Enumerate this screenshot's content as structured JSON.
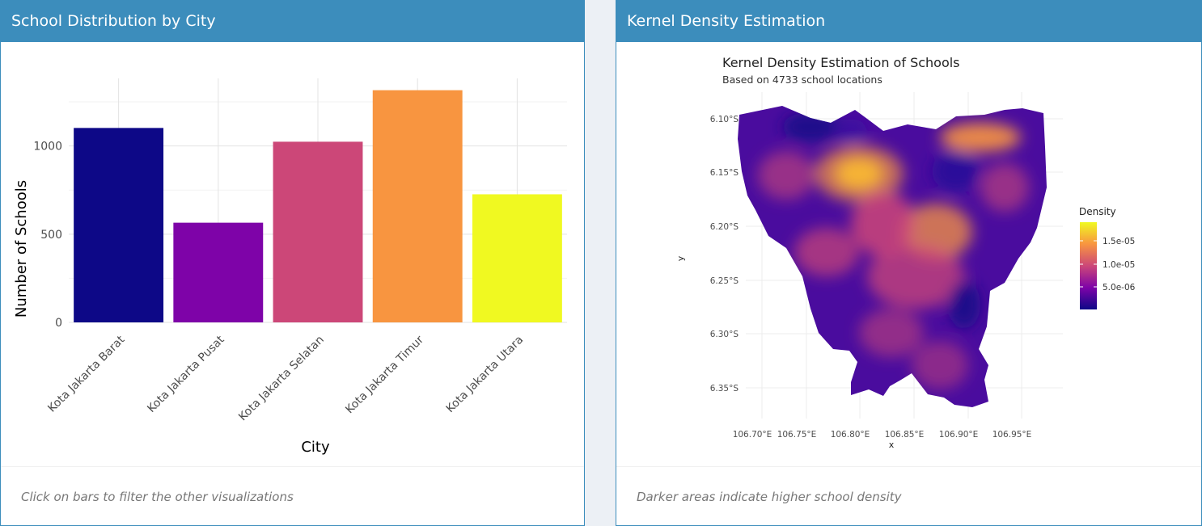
{
  "left_panel": {
    "title": "School Distribution by City",
    "footer": "Click on bars to filter the other visualizations"
  },
  "right_panel": {
    "title": "Kernel Density Estimation",
    "footer": "Darker areas indicate higher school density"
  },
  "chart_data": [
    {
      "type": "bar",
      "title": "",
      "xlabel": "City",
      "ylabel": "Number of Schools",
      "categories": [
        "Kota Jakarta Barat",
        "Kota Jakarta Pusat",
        "Kota Jakarta Selatan",
        "Kota Jakarta Timur",
        "Kota Jakarta Utara"
      ],
      "values": [
        1102,
        565,
        1024,
        1316,
        726
      ],
      "colors": [
        "#0d0887",
        "#7e03a8",
        "#cc4778",
        "#f89540",
        "#f0f921"
      ],
      "yticks": [
        0,
        500,
        1000
      ],
      "ylim": [
        0,
        1383
      ],
      "grid": true,
      "legend": "none"
    },
    {
      "type": "heatmap",
      "title": "Kernel Density Estimation of Schools",
      "subtitle": "Based on 4733 school locations",
      "xlabel": "x",
      "ylabel": "y",
      "xticks": [
        "106.70°E",
        "106.75°E",
        "106.80°E",
        "106.85°E",
        "106.90°E",
        "106.95°E"
      ],
      "yticks": [
        "6.10°S",
        "6.15°S",
        "6.20°S",
        "6.25°S",
        "6.30°S",
        "6.35°S"
      ],
      "xlim": [
        106.685,
        106.99
      ],
      "ylim": [
        -6.38,
        -6.08
      ],
      "legend": {
        "title": "Density",
        "position": "right",
        "labels": [
          "1.5e-05",
          "1.0e-05",
          "5.0e-06"
        ],
        "colors": [
          "#0d0887",
          "#7e03a8",
          "#cc4778",
          "#f89540",
          "#f0f921"
        ]
      }
    }
  ]
}
